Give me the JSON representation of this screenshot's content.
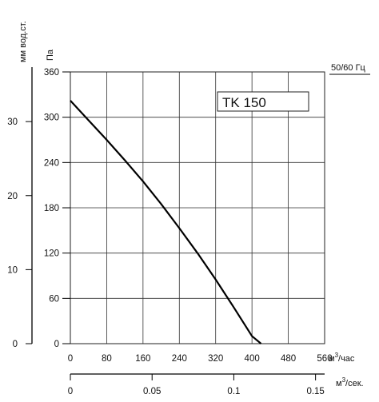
{
  "chart_data": {
    "type": "line",
    "title": "",
    "model_label": "TK 150",
    "frequency_label": "50/60 Гц",
    "y_unit_label": "Па",
    "y2_unit_label": "мм вод.ст.",
    "x_unit_label": "м³/час",
    "x2_unit_label": "м³/сек.",
    "xlim": [
      0,
      560
    ],
    "ylim": [
      0,
      360
    ],
    "x_ticks": [
      0,
      80,
      160,
      240,
      320,
      400,
      480,
      560
    ],
    "y_ticks": [
      0,
      60,
      120,
      180,
      240,
      300,
      360
    ],
    "y2_ticks": [
      0,
      10,
      20,
      30
    ],
    "x2_ticks": [
      "0",
      "0.05",
      "0.1",
      "0.15"
    ],
    "x2_values": [
      0,
      0.05,
      0.1,
      0.15
    ],
    "grid": true,
    "series": [
      {
        "x": [
          0,
          40,
          80,
          120,
          160,
          200,
          240,
          280,
          320,
          360,
          400,
          420
        ],
        "y": [
          322,
          296,
          270,
          243,
          215,
          185,
          153,
          120,
          85,
          48,
          10,
          0
        ]
      }
    ]
  },
  "colors": {
    "curve": "#000000",
    "grid": "#333333",
    "axis": "#000000",
    "x2_bar": "#000000"
  }
}
